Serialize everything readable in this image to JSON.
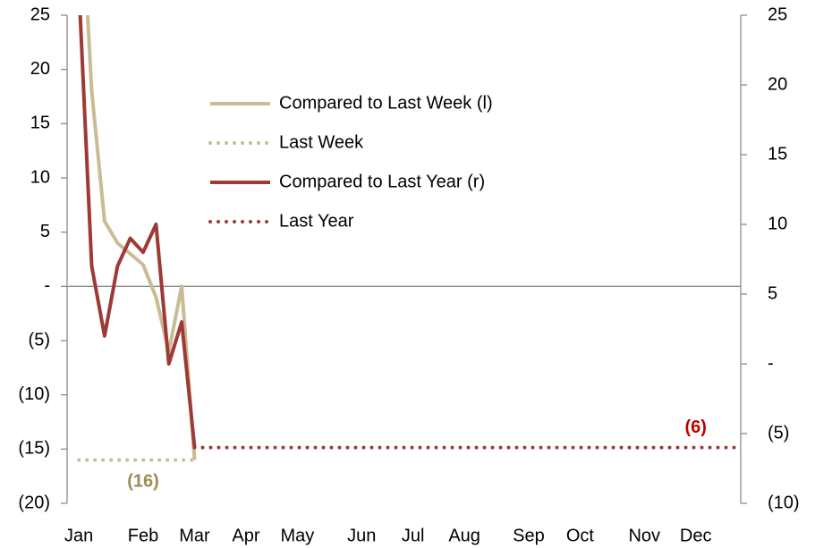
{
  "chart_data": {
    "type": "line",
    "categories": [
      "Jan",
      null,
      null,
      null,
      null,
      "Feb",
      null,
      null,
      null,
      "Mar",
      null,
      null,
      null,
      "Apr",
      null,
      null,
      null,
      "May",
      null,
      null,
      null,
      null,
      "Jun",
      null,
      null,
      null,
      "Jul",
      null,
      null,
      null,
      "Aug",
      null,
      null,
      null,
      null,
      "Sep",
      null,
      null,
      null,
      "Oct",
      null,
      null,
      null,
      null,
      "Nov",
      null,
      null,
      null,
      "Dec",
      null,
      null,
      null
    ],
    "series": [
      {
        "name": "Compared to Last Week (l)",
        "color": "#c9bc95",
        "style": "solid",
        "axis": "y",
        "values": [
          40,
          18,
          6,
          4,
          3,
          2,
          -1,
          -6,
          0,
          -16,
          null,
          null,
          null,
          null,
          null,
          null,
          null,
          null,
          null,
          null,
          null,
          null,
          null,
          null,
          null,
          null,
          null,
          null,
          null,
          null,
          null,
          null,
          null,
          null,
          null,
          null,
          null,
          null,
          null,
          null,
          null,
          null,
          null,
          null,
          null,
          null,
          null,
          null,
          null,
          null,
          null,
          null
        ]
      },
      {
        "name": "Last Week",
        "color": "#c9bc95",
        "style": "dotted",
        "axis": "y",
        "values": [
          -16,
          -16,
          -16,
          -16,
          -16,
          -16,
          -16,
          -16,
          -16,
          -16,
          null,
          null,
          null,
          null,
          null,
          null,
          null,
          null,
          null,
          null,
          null,
          null,
          null,
          null,
          null,
          null,
          null,
          null,
          null,
          null,
          null,
          null,
          null,
          null,
          null,
          null,
          null,
          null,
          null,
          null,
          null,
          null,
          null,
          null,
          null,
          null,
          null,
          null,
          null,
          null,
          null,
          null
        ]
      },
      {
        "name": "Compared to Last Year (r)",
        "color": "#9e3a35",
        "style": "solid",
        "axis": "y2",
        "values": [
          27,
          7,
          2,
          7,
          9,
          8,
          10,
          0,
          3,
          -6,
          null,
          null,
          null,
          null,
          null,
          null,
          null,
          null,
          null,
          null,
          null,
          null,
          null,
          null,
          null,
          null,
          null,
          null,
          null,
          null,
          null,
          null,
          null,
          null,
          null,
          null,
          null,
          null,
          null,
          null,
          null,
          null,
          null,
          null,
          null,
          null,
          null,
          null,
          null,
          null,
          null,
          null
        ]
      },
      {
        "name": "Last Year",
        "color": "#9e3a35",
        "style": "dotted",
        "axis": "y2",
        "values": [
          null,
          null,
          null,
          null,
          null,
          null,
          null,
          null,
          null,
          -6,
          -6,
          -6,
          -6,
          -6,
          -6,
          -6,
          -6,
          -6,
          -6,
          -6,
          -6,
          -6,
          -6,
          -6,
          -6,
          -6,
          -6,
          -6,
          -6,
          -6,
          -6,
          -6,
          -6,
          -6,
          -6,
          -6,
          -6,
          -6,
          -6,
          -6,
          -6,
          -6,
          -6,
          -6,
          -6,
          -6,
          -6,
          -6,
          -6,
          -6,
          -6,
          -6
        ]
      }
    ],
    "annotations": [
      {
        "label": "(16)",
        "value": -16,
        "index": 5,
        "color": "#9c8b57",
        "axis": "y"
      },
      {
        "label": "(6)",
        "value": -6,
        "index": 48,
        "color": "#c00000",
        "axis": "y2"
      }
    ],
    "ylim": [
      -20,
      25
    ],
    "yticks": [
      {
        "value": -20,
        "label": "(20)"
      },
      {
        "value": -15,
        "label": "(15)"
      },
      {
        "value": -10,
        "label": "(10)"
      },
      {
        "value": -5,
        "label": "(5)"
      },
      {
        "value": 0,
        "label": "-"
      },
      5,
      10,
      15,
      20,
      25
    ],
    "y2lim": [
      -10,
      25
    ],
    "y2ticks": [
      {
        "value": -10,
        "label": "(10)"
      },
      {
        "value": -5,
        "label": "(5)"
      },
      {
        "value": 0,
        "label": "-"
      },
      5,
      10,
      15,
      20,
      25
    ],
    "legend": "top-center"
  }
}
